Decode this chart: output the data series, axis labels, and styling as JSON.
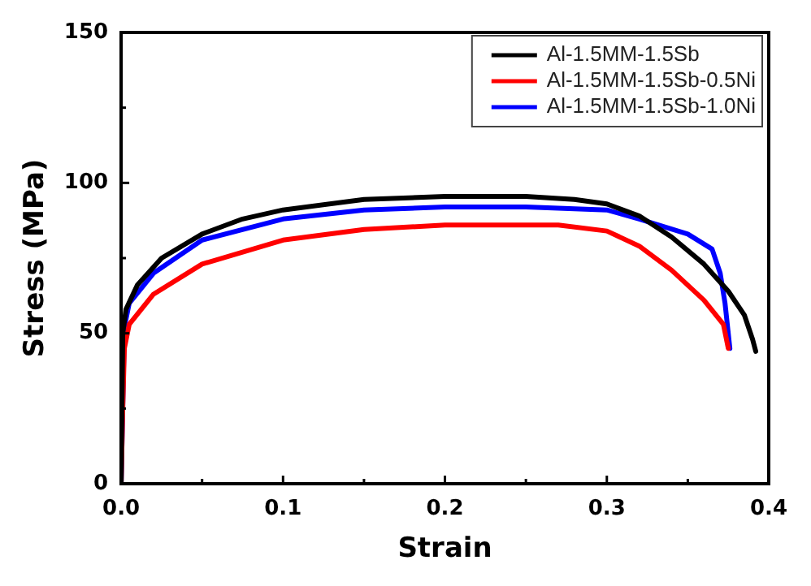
{
  "chart_data": {
    "type": "line",
    "xlabel": "Strain",
    "ylabel": "Stress (MPa)",
    "xlim": [
      0,
      0.4
    ],
    "xticks": [
      {
        "value": 0,
        "label": "0.0"
      },
      {
        "value": 0.05,
        "label": null
      },
      0.1,
      {
        "value": 0.15,
        "label": null
      },
      0.2,
      {
        "value": 0.25,
        "label": null
      },
      0.3,
      {
        "value": 0.35,
        "label": null
      },
      0.4
    ],
    "ylim": [
      0,
      150
    ],
    "yticks": [
      0,
      {
        "value": 25,
        "label": null
      },
      50,
      {
        "value": 75,
        "label": null
      },
      100,
      {
        "value": 125,
        "label": null
      },
      150
    ],
    "grid": false,
    "legend": "top right",
    "marker": "none",
    "line_style": "solid",
    "series": [
      {
        "name": "Al-1.5MM-1.5Sb",
        "color": "#000000",
        "x": [
          0,
          0.001,
          0.003,
          0.01,
          0.025,
          0.05,
          0.075,
          0.1,
          0.15,
          0.2,
          0.25,
          0.28,
          0.3,
          0.32,
          0.34,
          0.36,
          0.375,
          0.385,
          0.39,
          0.392
        ],
        "values": [
          0,
          50,
          58,
          66,
          75,
          83,
          88,
          91,
          94.5,
          95.5,
          95.5,
          94.5,
          93,
          89,
          82,
          73,
          64,
          56,
          48,
          44
        ]
      },
      {
        "name": "Al-1.5MM-1.5Sb-0.5Ni",
        "color": "#ff0000",
        "x": [
          0,
          0.001,
          0.002,
          0.005,
          0.02,
          0.05,
          0.1,
          0.15,
          0.2,
          0.27,
          0.3,
          0.32,
          0.34,
          0.36,
          0.372,
          0.375
        ],
        "values": [
          0,
          25,
          45,
          53,
          63,
          73,
          81,
          84.5,
          86,
          86,
          84,
          79,
          71,
          61,
          53,
          45
        ]
      },
      {
        "name": "Al-1.5MM-1.5Sb-1.0Ni",
        "color": "#0000ff",
        "x": [
          0,
          0.002,
          0.005,
          0.02,
          0.05,
          0.1,
          0.15,
          0.2,
          0.25,
          0.3,
          0.32,
          0.35,
          0.365,
          0.37,
          0.373,
          0.376
        ],
        "values": [
          0,
          52,
          60,
          70,
          81,
          88,
          91,
          92,
          92,
          91,
          88,
          83,
          78,
          70,
          60,
          45
        ]
      }
    ]
  }
}
